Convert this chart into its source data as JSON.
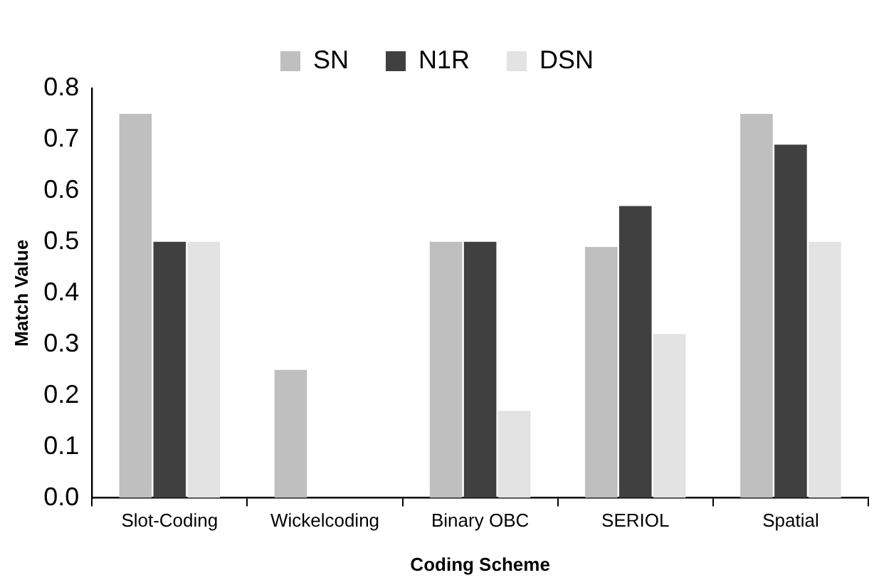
{
  "chart_data": {
    "type": "bar",
    "xlabel": "Coding Scheme",
    "ylabel": "Match Value",
    "categories": [
      "Slot-Coding",
      "Wickelcoding",
      "Binary OBC",
      "SERIOL",
      "Spatial"
    ],
    "series": [
      {
        "name": "SN",
        "color": "#bfbfbf",
        "values": [
          0.75,
          0.25,
          0.5,
          0.49,
          0.75
        ]
      },
      {
        "name": "N1R",
        "color": "#404040",
        "values": [
          0.5,
          0,
          0.5,
          0.57,
          0.69
        ]
      },
      {
        "name": "DSN",
        "color": "#e3e3e3",
        "values": [
          0.5,
          0,
          0.17,
          0.32,
          0.5
        ]
      }
    ],
    "ylim": [
      0,
      0.8
    ],
    "yticks": [
      {
        "value": 0,
        "label": "0.0"
      },
      {
        "value": 0.1,
        "label": "0.1"
      },
      {
        "value": 0.2,
        "label": "0.2"
      },
      {
        "value": 0.3,
        "label": "0.3"
      },
      {
        "value": 0.4,
        "label": "0.4"
      },
      {
        "value": 0.5,
        "label": "0.5"
      },
      {
        "value": 0.6,
        "label": "0.6"
      },
      {
        "value": 0.7,
        "label": "0.7"
      },
      {
        "value": 0.8,
        "label": "0.8"
      }
    ],
    "grid": false,
    "legend": "top"
  }
}
